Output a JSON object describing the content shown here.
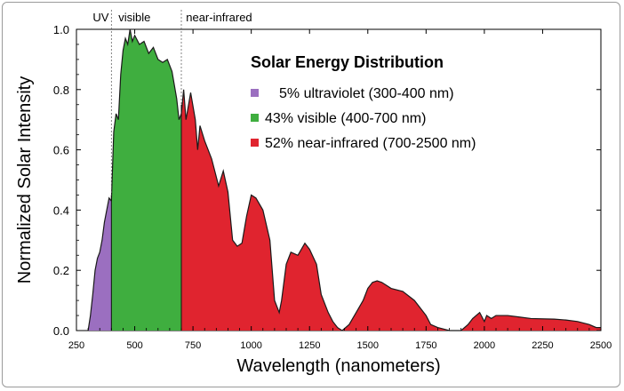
{
  "chart_data": {
    "type": "area",
    "title": "Solar Energy Distribution",
    "xlabel": "Wavelength (nanometers)",
    "ylabel": "Normalized Solar Intensity",
    "xlim": [
      250,
      2500
    ],
    "ylim": [
      0,
      1.0
    ],
    "x_ticks": [
      250,
      500,
      750,
      1000,
      1250,
      1500,
      1750,
      2000,
      2250,
      2500
    ],
    "y_ticks": [
      0.0,
      0.2,
      0.4,
      0.6,
      0.8,
      1.0
    ],
    "x_tick_labels": [
      "250",
      "500",
      "750",
      "1000",
      "1250",
      "1500",
      "1750",
      "2000",
      "2250",
      "2500"
    ],
    "y_tick_labels": [
      "0.0",
      "0.2",
      "0.4",
      "0.6",
      "0.8",
      "1.0"
    ],
    "grid": false,
    "legend_position": "top-right",
    "region_labels": [
      {
        "text": "UV",
        "x": 350
      },
      {
        "text": "visible",
        "x": 550
      },
      {
        "text": "near-infrared",
        "x": 1600
      }
    ],
    "boundaries": [
      400,
      700
    ],
    "series": [
      {
        "name": "5% ultraviolet (300-400 nm)",
        "color": "#9b6fc0",
        "x": [
          300,
          310,
          320,
          330,
          340,
          350,
          360,
          370,
          380,
          390,
          400
        ],
        "y": [
          0,
          0.05,
          0.12,
          0.2,
          0.24,
          0.26,
          0.3,
          0.36,
          0.4,
          0.44,
          0.43
        ]
      },
      {
        "name": "43% visible (400-700 nm)",
        "color": "#3fae3f",
        "x": [
          400,
          410,
          420,
          430,
          440,
          450,
          460,
          470,
          480,
          490,
          500,
          520,
          540,
          560,
          580,
          600,
          620,
          640,
          660,
          680,
          690,
          700
        ],
        "y": [
          0.43,
          0.66,
          0.72,
          0.7,
          0.85,
          0.93,
          0.97,
          0.95,
          1.0,
          0.96,
          0.98,
          0.95,
          0.96,
          0.92,
          0.94,
          0.9,
          0.89,
          0.9,
          0.86,
          0.77,
          0.7,
          0.72
        ]
      },
      {
        "name": "52% near-infrared (700-2500 nm)",
        "color": "#e0242f",
        "x": [
          700,
          710,
          720,
          740,
          760,
          770,
          780,
          800,
          830,
          860,
          880,
          900,
          920,
          940,
          960,
          980,
          1000,
          1020,
          1050,
          1080,
          1100,
          1120,
          1130,
          1150,
          1170,
          1200,
          1230,
          1250,
          1280,
          1300,
          1330,
          1350,
          1370,
          1390,
          1420,
          1450,
          1480,
          1500,
          1520,
          1540,
          1560,
          1580,
          1600,
          1650,
          1700,
          1730,
          1750,
          1770,
          1800,
          1850,
          1900,
          1930,
          1950,
          1980,
          2000,
          2010,
          2030,
          2050,
          2080,
          2100,
          2150,
          2200,
          2300,
          2350,
          2400,
          2450,
          2480,
          2500
        ],
        "y": [
          0.72,
          0.8,
          0.7,
          0.79,
          0.7,
          0.6,
          0.68,
          0.63,
          0.57,
          0.48,
          0.53,
          0.46,
          0.3,
          0.28,
          0.29,
          0.38,
          0.45,
          0.44,
          0.4,
          0.3,
          0.1,
          0.06,
          0.1,
          0.22,
          0.26,
          0.25,
          0.29,
          0.27,
          0.22,
          0.12,
          0.06,
          0.03,
          0.01,
          0.0,
          0.02,
          0.06,
          0.1,
          0.14,
          0.16,
          0.165,
          0.16,
          0.15,
          0.14,
          0.13,
          0.1,
          0.07,
          0.05,
          0.02,
          0.01,
          0.0,
          0.0,
          0.02,
          0.04,
          0.06,
          0.03,
          0.05,
          0.04,
          0.05,
          0.05,
          0.05,
          0.045,
          0.04,
          0.038,
          0.035,
          0.03,
          0.02,
          0.01,
          0.01
        ]
      }
    ]
  }
}
